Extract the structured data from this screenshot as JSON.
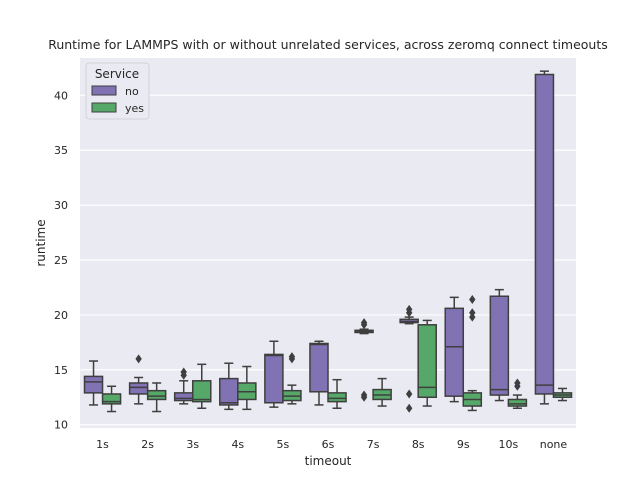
{
  "chart_data": {
    "type": "box",
    "title": "Runtime for LAMMPS with or without unrelated services, across zeromq connect timeouts",
    "xlabel": "timeout",
    "ylabel": "runtime",
    "categories": [
      "1s",
      "2s",
      "3s",
      "4s",
      "5s",
      "6s",
      "7s",
      "8s",
      "9s",
      "10s",
      "none"
    ],
    "ylim": [
      9.7,
      43.4
    ],
    "yticks": [
      10,
      15,
      20,
      25,
      30,
      35,
      40
    ],
    "grid": true,
    "legend": {
      "title": "Service",
      "placement": "top-left",
      "entries": [
        "no",
        "yes"
      ]
    },
    "colors": {
      "no": "#8172b3",
      "yes": "#55a868",
      "background": "#eaeaf2",
      "line": "#3f3f3f"
    },
    "series": [
      {
        "name": "no",
        "boxes": [
          {
            "min": 11.8,
            "q1": 12.9,
            "median": 13.9,
            "q3": 14.4,
            "max": 15.8,
            "outliers": []
          },
          {
            "min": 11.9,
            "q1": 12.8,
            "median": 13.4,
            "q3": 13.8,
            "max": 14.3,
            "outliers": [
              16.0
            ]
          },
          {
            "min": 11.9,
            "q1": 12.2,
            "median": 12.4,
            "q3": 12.9,
            "max": 14.0,
            "outliers": [
              14.5,
              14.8
            ]
          },
          {
            "min": 11.4,
            "q1": 11.8,
            "median": 12.0,
            "q3": 14.2,
            "max": 15.6,
            "outliers": []
          },
          {
            "min": 11.6,
            "q1": 12.0,
            "median": 16.3,
            "q3": 16.4,
            "max": 17.6,
            "outliers": []
          },
          {
            "min": 11.8,
            "q1": 13.0,
            "median": 17.3,
            "q3": 17.4,
            "max": 17.6,
            "outliers": []
          },
          {
            "min": 18.3,
            "q1": 18.4,
            "median": 18.5,
            "q3": 18.6,
            "max": 18.7,
            "outliers": [
              12.5,
              12.7,
              19.1,
              19.3
            ]
          },
          {
            "min": 19.2,
            "q1": 19.3,
            "median": 19.4,
            "q3": 19.6,
            "max": 19.8,
            "outliers": [
              11.5,
              12.8,
              20.2,
              20.5
            ]
          },
          {
            "min": 12.1,
            "q1": 12.6,
            "median": 17.1,
            "q3": 20.6,
            "max": 21.6,
            "outliers": []
          },
          {
            "min": 12.2,
            "q1": 12.7,
            "median": 13.2,
            "q3": 21.7,
            "max": 22.3,
            "outliers": []
          },
          {
            "min": 11.9,
            "q1": 12.8,
            "median": 13.6,
            "q3": 41.9,
            "max": 42.2,
            "outliers": []
          }
        ]
      },
      {
        "name": "yes",
        "boxes": [
          {
            "min": 11.2,
            "q1": 11.9,
            "median": 12.1,
            "q3": 12.8,
            "max": 13.5,
            "outliers": []
          },
          {
            "min": 11.2,
            "q1": 12.3,
            "median": 12.6,
            "q3": 13.1,
            "max": 13.8,
            "outliers": []
          },
          {
            "min": 11.5,
            "q1": 12.1,
            "median": 12.3,
            "q3": 14.0,
            "max": 15.5,
            "outliers": []
          },
          {
            "min": 11.4,
            "q1": 12.3,
            "median": 13.0,
            "q3": 13.8,
            "max": 15.3,
            "outliers": []
          },
          {
            "min": 11.9,
            "q1": 12.2,
            "median": 12.6,
            "q3": 13.1,
            "max": 13.6,
            "outliers": [
              16.0,
              16.2
            ]
          },
          {
            "min": 11.5,
            "q1": 12.1,
            "median": 12.4,
            "q3": 12.9,
            "max": 14.1,
            "outliers": []
          },
          {
            "min": 11.7,
            "q1": 12.3,
            "median": 12.7,
            "q3": 13.2,
            "max": 14.2,
            "outliers": []
          },
          {
            "min": 11.7,
            "q1": 12.5,
            "median": 13.4,
            "q3": 19.1,
            "max": 19.5,
            "outliers": []
          },
          {
            "min": 11.3,
            "q1": 11.7,
            "median": 12.3,
            "q3": 12.9,
            "max": 13.1,
            "outliers": [
              19.8,
              20.2,
              21.4
            ]
          },
          {
            "min": 11.5,
            "q1": 11.7,
            "median": 11.9,
            "q3": 12.3,
            "max": 12.7,
            "outliers": [
              13.5,
              13.8
            ]
          },
          {
            "min": 12.2,
            "q1": 12.5,
            "median": 12.7,
            "q3": 12.9,
            "max": 13.3,
            "outliers": []
          }
        ]
      }
    ]
  }
}
